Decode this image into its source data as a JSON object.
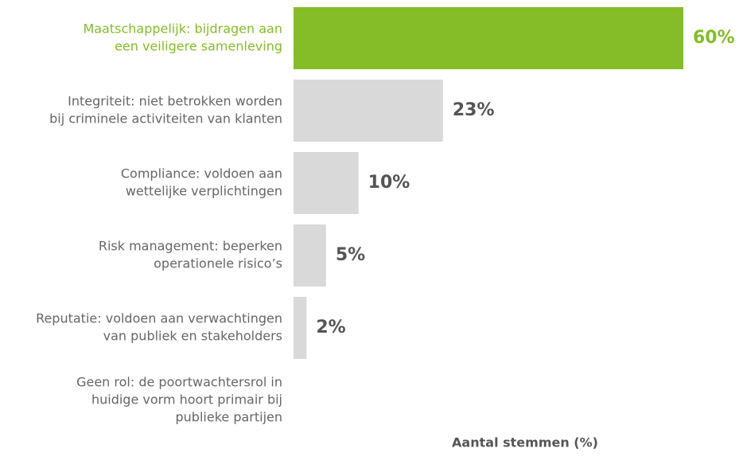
{
  "chart_data": {
    "type": "barh",
    "categories": [
      [
        "Maatschappelijk: bijdragen aan",
        "een veiligere samenleving"
      ],
      [
        "Integriteit: niet betrokken worden",
        "bij criminele activiteiten van klanten"
      ],
      [
        "Compliance: voldoen aan",
        "wettelijke verplichtingen"
      ],
      [
        "Risk management: beperken",
        "operationele risico’s"
      ],
      [
        "Reputatie: voldoen aan verwachtingen",
        "van publiek en stakeholders"
      ],
      [
        "Geen rol: de poortwachtersrol in",
        "huidige vorm hoort primair bij",
        "publieke partijen"
      ]
    ],
    "values": [
      60,
      23,
      10,
      5,
      2,
      0
    ],
    "value_labels": [
      "60%",
      "23%",
      "10%",
      "5%",
      "2%",
      null
    ],
    "colors": [
      "#84bd27",
      "#d9d9d9",
      "#d9d9d9",
      "#d9d9d9",
      "#d9d9d9",
      "#d9d9d9"
    ],
    "label_colors": [
      "#84bd27",
      "#666666",
      "#666666",
      "#666666",
      "#666666",
      "#666666"
    ],
    "xlim": [
      0,
      60
    ],
    "xlabel": "Aantal stemmen (%)"
  }
}
